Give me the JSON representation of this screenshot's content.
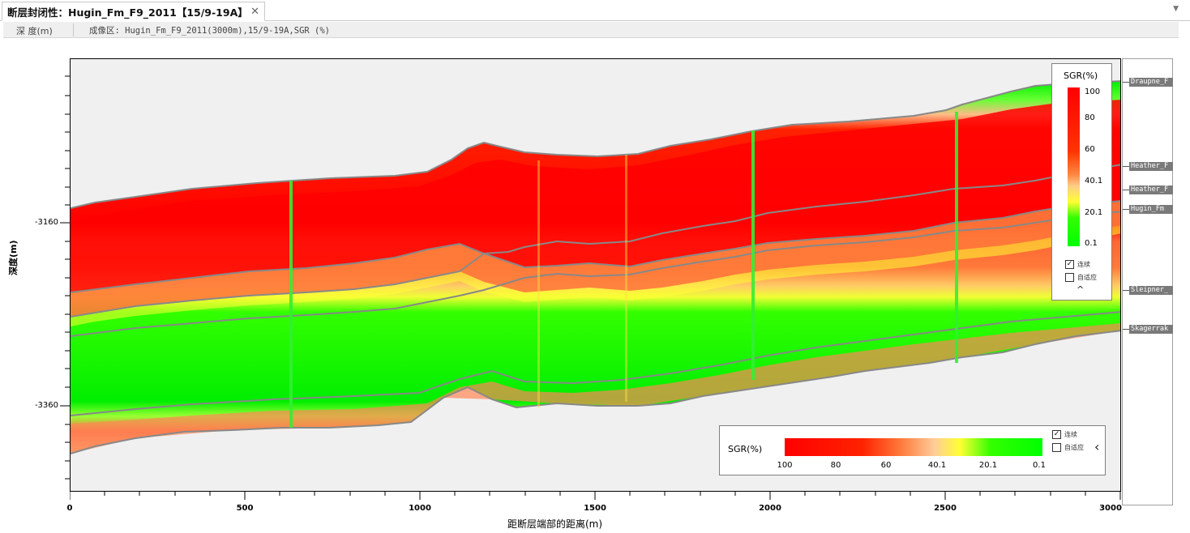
{
  "tab": {
    "title": "断层封闭性：Hugin_Fm_F9_2011【15/9-19A】",
    "close": "✕"
  },
  "infobar": {
    "depth_label": "深 度(m)",
    "imaging_label": "成像区: Hugin_Fm_F9_2011(3000m),15/9-19A,SGR (%)"
  },
  "plot": {
    "ylabel": "深度(m)",
    "xlabel": "距断层端部的距离(m)",
    "y_ticks": [
      "-3160",
      "-3360"
    ],
    "x_ticks": [
      "0",
      "500",
      "1000",
      "1500",
      "2000",
      "2500",
      "3000"
    ]
  },
  "formations": [
    "Draupne_F",
    "Heather_F",
    "Heather_F",
    "Hugin_Fm",
    "Sleipner_",
    "Skagerrak"
  ],
  "legend_vertical": {
    "title": "SGR(%)",
    "labels": [
      "100",
      "80",
      "60",
      "40.1",
      "20.1",
      "0.1"
    ],
    "continuous_label": "连续",
    "adaptive_label": "自适应",
    "continuous_checked": true,
    "adaptive_checked": false
  },
  "legend_horizontal": {
    "title": "SGR(%)",
    "labels": [
      "100",
      "80",
      "60",
      "40.1",
      "20.1",
      "0.1"
    ],
    "continuous_label": "连续",
    "adaptive_label": "自适应",
    "continuous_checked": true,
    "adaptive_checked": false
  },
  "colors": {
    "high": "#ff0000",
    "mid_high": "#ff7a3a",
    "mid": "#ffff33",
    "low": "#00ff00",
    "background": "#f0f0f0"
  },
  "chart_data": {
    "type": "heatmap",
    "x_range": [
      0,
      3000
    ],
    "ylabel": "深度(m)",
    "xlabel": "距断层端部的距离(m)",
    "colorbar": {
      "label": "SGR(%)",
      "min": 0.1,
      "max": 100
    }
  }
}
